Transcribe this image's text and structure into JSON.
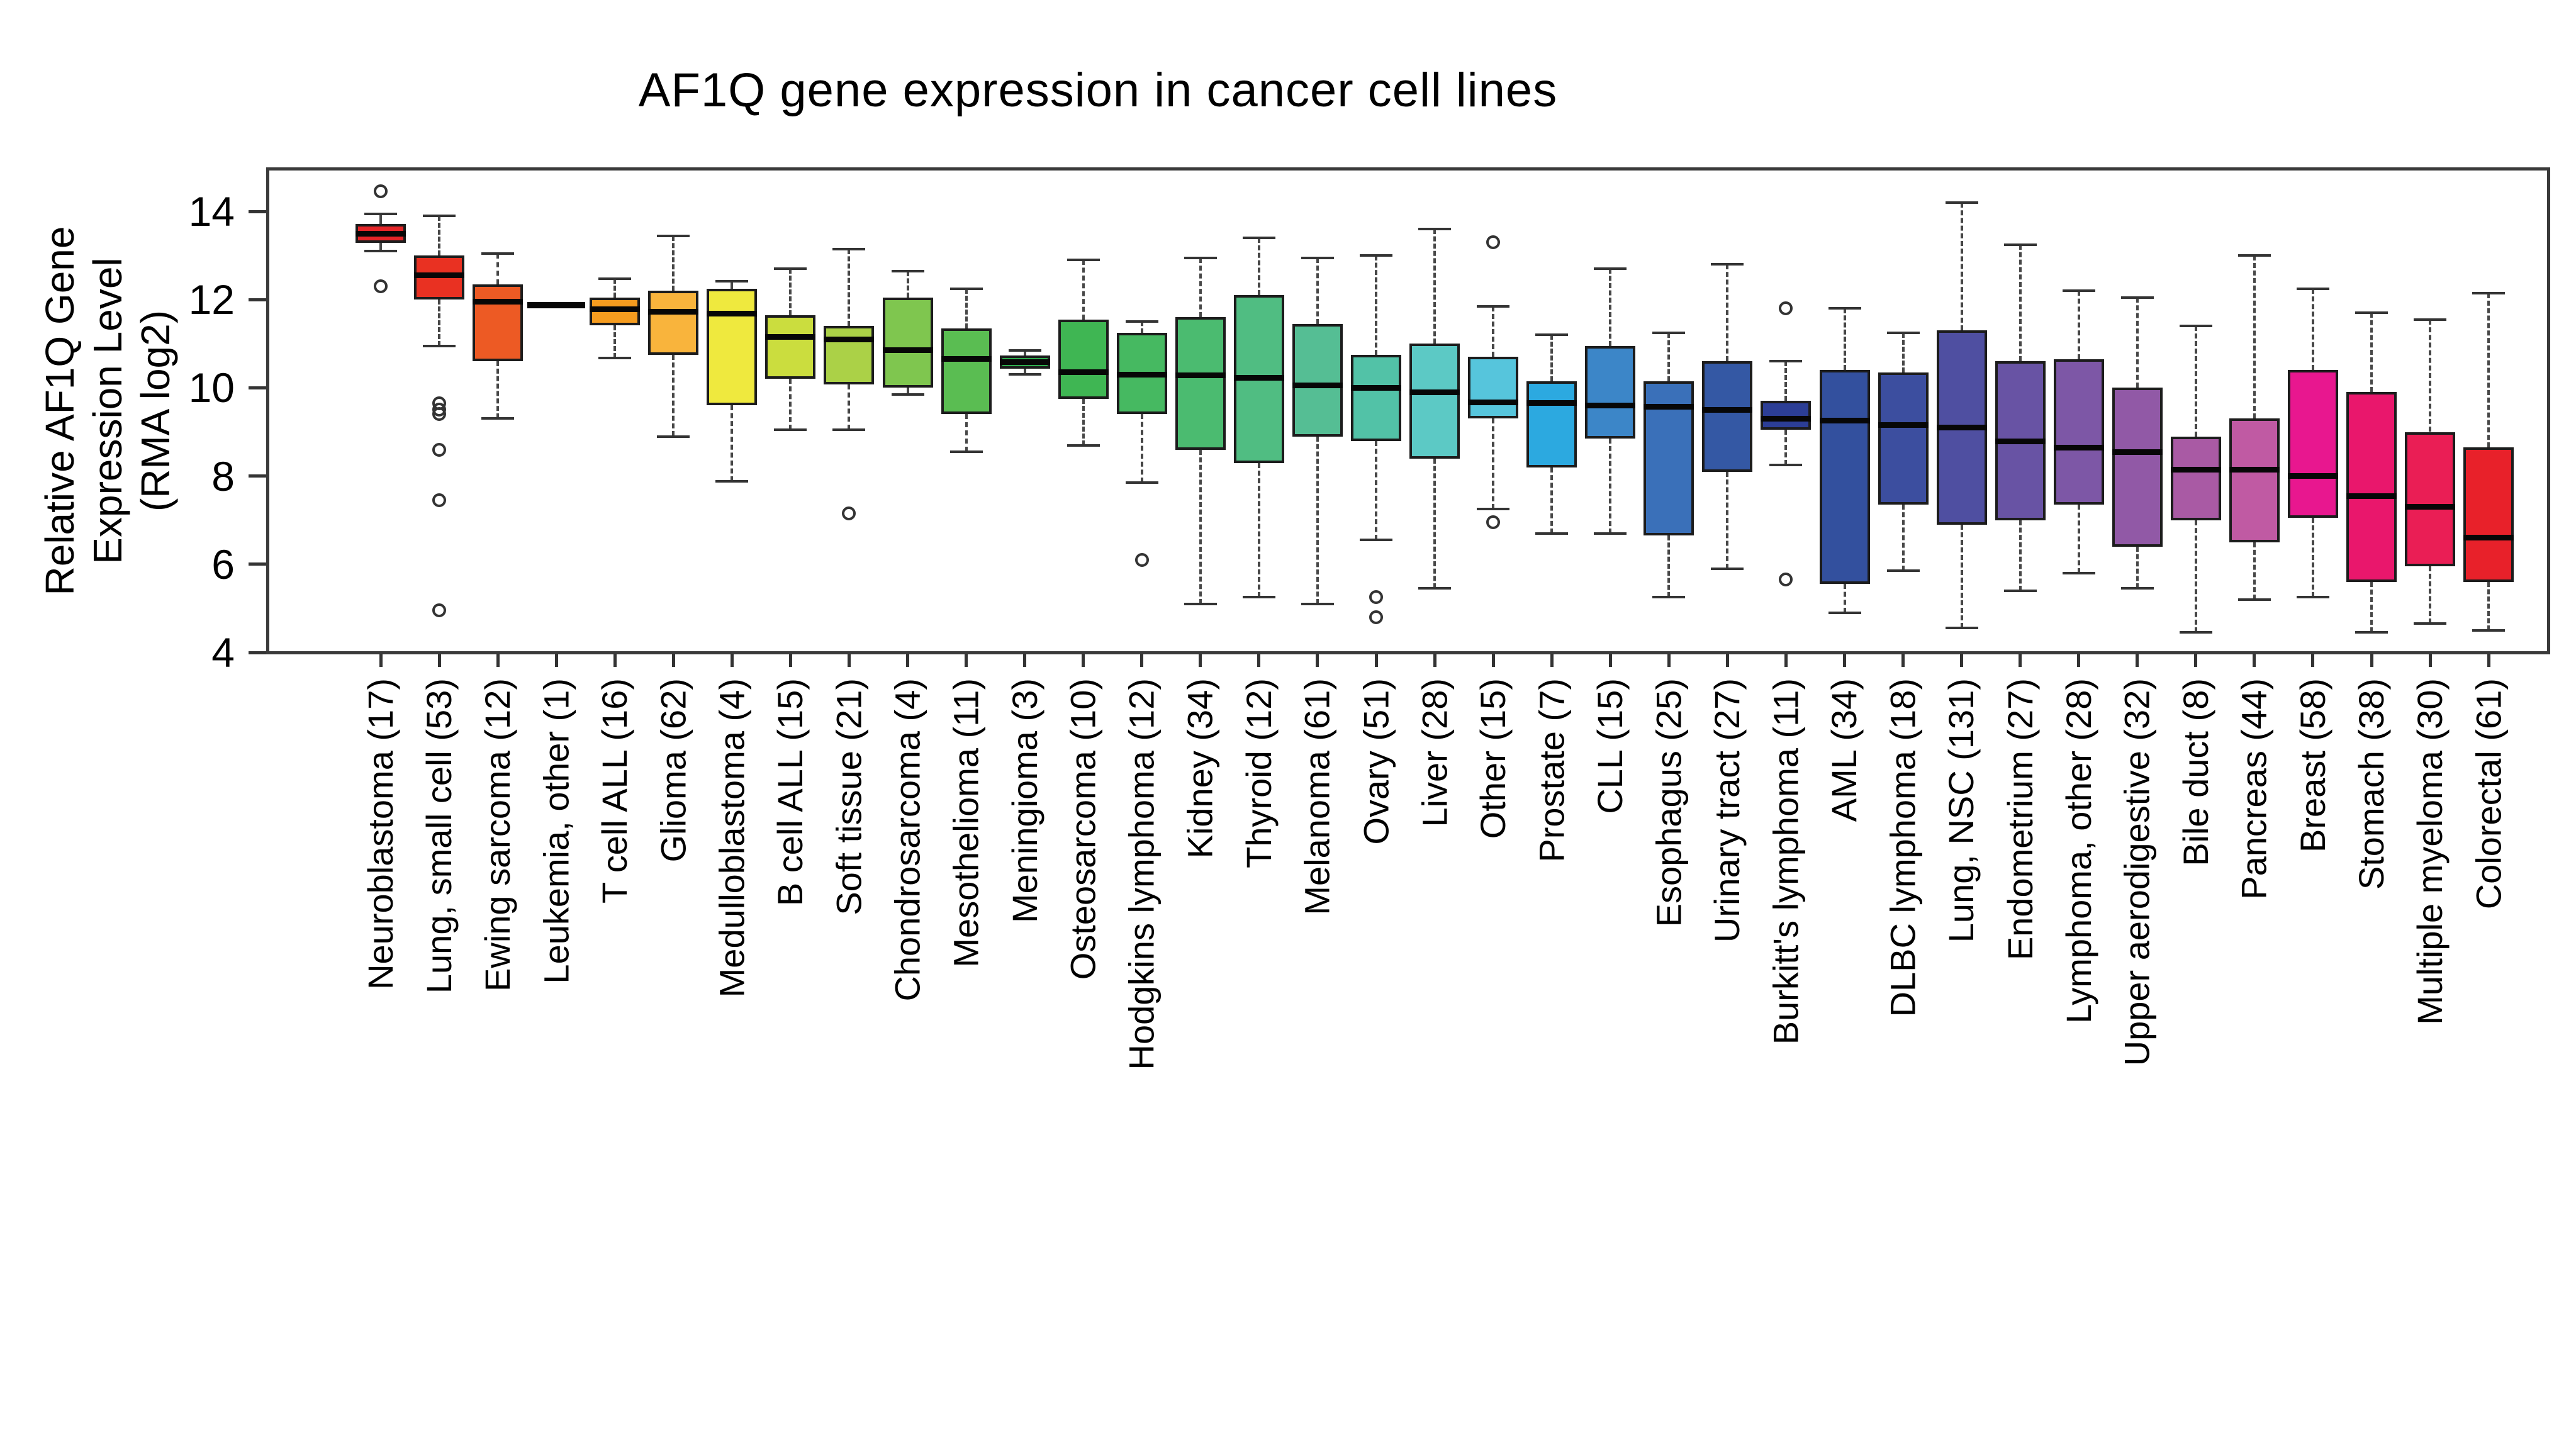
{
  "title": "AF1Q gene expression in cancer cell lines",
  "y_axis": {
    "title_lines": [
      "Relative AF1Q Gene",
      "Expression Level",
      "(RMA log2)"
    ],
    "title_text": "Relative AF1Q Gene Expression Level (RMA log2)",
    "ticks": [
      4,
      6,
      8,
      10,
      12,
      14
    ]
  },
  "chart_data": {
    "type": "box",
    "title": "AF1Q gene expression in cancer cell lines",
    "xlabel": "",
    "ylabel": "Relative AF1Q Gene Expression Level (RMA log2)",
    "ylim": [
      3.85,
      14.9
    ],
    "yticks": [
      4,
      6,
      8,
      10,
      12,
      14
    ],
    "grid": false,
    "legend": "none",
    "categories": [
      "Neuroblastoma (17)",
      "Lung, small cell (53)",
      "Ewing sarcoma (12)",
      "Leukemia, other (1)",
      "T cell ALL (16)",
      "Glioma (62)",
      "Medulloblastoma (4)",
      "B cell ALL (15)",
      "Soft tissue (21)",
      "Chondrosarcoma (4)",
      "Mesothelioma (11)",
      "Meningioma (3)",
      "Osteosarcoma (10)",
      "Hodgkins lymphoma (12)",
      "Kidney (34)",
      "Thyroid (12)",
      "Melanoma (61)",
      "Ovary (51)",
      "Liver (28)",
      "Other (15)",
      "Prostate (7)",
      "CLL (15)",
      "Esophagus (25)",
      "Urinary tract (27)",
      "Burkitt's lymphoma (11)",
      "AML (34)",
      "DLBC lymphoma (18)",
      "Lung, NSC (131)",
      "Endometrium (27)",
      "Lymphoma, other (28)",
      "Upper aerodigestive (32)",
      "Bile duct (8)",
      "Pancreas (44)",
      "Breast (58)",
      "Stomach (38)",
      "Multiple myeloma (30)",
      "Colorectal (61)"
    ],
    "series": [
      {
        "name": "Neuroblastoma (17)",
        "color": "#E52528",
        "low": 13.1,
        "q1": 13.28,
        "median": 13.5,
        "q3": 13.72,
        "high": 13.95,
        "outliers": [
          14.45,
          12.3
        ]
      },
      {
        "name": "Lung, small cell (53)",
        "color": "#E93122",
        "low": 10.95,
        "q1": 12.0,
        "median": 12.55,
        "q3": 13.0,
        "high": 13.9,
        "outliers": [
          9.65,
          9.5,
          9.4,
          8.6,
          7.45,
          4.95
        ]
      },
      {
        "name": "Ewing sarcoma (12)",
        "color": "#ED5A24",
        "low": 9.3,
        "q1": 10.6,
        "median": 11.95,
        "q3": 12.35,
        "high": 13.05,
        "outliers": []
      },
      {
        "name": "Leukemia, other (1)",
        "color": "#F08020",
        "single": true,
        "median": 11.87,
        "outliers": []
      },
      {
        "name": "T cell ALL (16)",
        "color": "#F59C1F",
        "low": 10.68,
        "q1": 11.42,
        "median": 11.78,
        "q3": 12.05,
        "high": 12.48,
        "outliers": []
      },
      {
        "name": "Glioma (62)",
        "color": "#F9B43C",
        "low": 8.9,
        "q1": 10.75,
        "median": 11.72,
        "q3": 12.2,
        "high": 13.45,
        "outliers": []
      },
      {
        "name": "Medulloblastoma (4)",
        "color": "#EFE93E",
        "low": 7.88,
        "q1": 9.6,
        "median": 11.68,
        "q3": 12.25,
        "high": 12.42,
        "outliers": []
      },
      {
        "name": "B cell ALL (15)",
        "color": "#CBDD3E",
        "low": 9.05,
        "q1": 10.2,
        "median": 11.15,
        "q3": 11.65,
        "high": 12.7,
        "outliers": []
      },
      {
        "name": "Soft tissue (21)",
        "color": "#ABD147",
        "low": 9.05,
        "q1": 10.08,
        "median": 11.1,
        "q3": 11.4,
        "high": 13.15,
        "outliers": [
          7.15
        ]
      },
      {
        "name": "Chondrosarcoma (4)",
        "color": "#7FC64F",
        "low": 9.85,
        "q1": 10.0,
        "median": 10.85,
        "q3": 12.05,
        "high": 12.65,
        "outliers": []
      },
      {
        "name": "Mesothelioma (11)",
        "color": "#5ABD52",
        "low": 8.55,
        "q1": 9.4,
        "median": 10.65,
        "q3": 11.35,
        "high": 12.25,
        "outliers": []
      },
      {
        "name": "Meningioma (3)",
        "color": "#2FAD4E",
        "low": 10.3,
        "q1": 10.43,
        "median": 10.58,
        "q3": 10.73,
        "high": 10.85,
        "outliers": []
      },
      {
        "name": "Osteosarcoma (10)",
        "color": "#3FB653",
        "low": 8.7,
        "q1": 9.75,
        "median": 10.35,
        "q3": 11.55,
        "high": 12.9,
        "outliers": []
      },
      {
        "name": "Hodgkins lymphoma (12)",
        "color": "#46B961",
        "low": 7.85,
        "q1": 9.4,
        "median": 10.3,
        "q3": 11.25,
        "high": 11.5,
        "outliers": [
          6.1
        ]
      },
      {
        "name": "Kidney (34)",
        "color": "#4BBB70",
        "low": 5.1,
        "q1": 8.6,
        "median": 10.28,
        "q3": 11.6,
        "high": 12.95,
        "outliers": []
      },
      {
        "name": "Thyroid (12)",
        "color": "#50BD82",
        "low": 5.25,
        "q1": 8.3,
        "median": 10.22,
        "q3": 12.1,
        "high": 13.4,
        "outliers": []
      },
      {
        "name": "Melanoma (61)",
        "color": "#55BE94",
        "low": 5.1,
        "q1": 8.9,
        "median": 10.05,
        "q3": 11.45,
        "high": 12.95,
        "outliers": []
      },
      {
        "name": "Ovary (51)",
        "color": "#52C2A7",
        "low": 6.55,
        "q1": 8.8,
        "median": 10.0,
        "q3": 10.75,
        "high": 13.0,
        "outliers": [
          5.25,
          4.8
        ]
      },
      {
        "name": "Liver (28)",
        "color": "#5CC9C5",
        "low": 5.45,
        "q1": 8.4,
        "median": 9.9,
        "q3": 11.0,
        "high": 13.6,
        "outliers": []
      },
      {
        "name": "Other (15)",
        "color": "#56C5DC",
        "low": 7.25,
        "q1": 9.3,
        "median": 9.67,
        "q3": 10.7,
        "high": 11.85,
        "outliers": [
          13.3,
          6.95
        ]
      },
      {
        "name": "Prostate (7)",
        "color": "#2CA9E0",
        "low": 6.7,
        "q1": 8.2,
        "median": 9.65,
        "q3": 10.15,
        "high": 11.2,
        "outliers": []
      },
      {
        "name": "CLL (15)",
        "color": "#3C86C8",
        "low": 6.7,
        "q1": 8.85,
        "median": 9.6,
        "q3": 10.95,
        "high": 12.7,
        "outliers": []
      },
      {
        "name": "Esophagus (25)",
        "color": "#3A70B9",
        "low": 5.25,
        "q1": 6.65,
        "median": 9.57,
        "q3": 10.15,
        "high": 11.25,
        "outliers": []
      },
      {
        "name": "Urinary tract (27)",
        "color": "#3458A4",
        "low": 5.9,
        "q1": 8.1,
        "median": 9.5,
        "q3": 10.6,
        "high": 12.8,
        "outliers": []
      },
      {
        "name": "Burkitt's lymphoma (11)",
        "color": "#2C3E96",
        "low": 8.25,
        "q1": 9.05,
        "median": 9.3,
        "q3": 9.7,
        "high": 10.6,
        "outliers": [
          11.8,
          5.65
        ]
      },
      {
        "name": "AML (34)",
        "color": "#33509E",
        "low": 4.9,
        "q1": 5.55,
        "median": 9.25,
        "q3": 10.4,
        "high": 11.8,
        "outliers": []
      },
      {
        "name": "DLBC lymphoma (18)",
        "color": "#3C4E9F",
        "low": 5.85,
        "q1": 7.35,
        "median": 9.15,
        "q3": 10.35,
        "high": 11.25,
        "outliers": []
      },
      {
        "name": "Lung, NSC (131)",
        "color": "#4F4FA1",
        "low": 4.55,
        "q1": 6.9,
        "median": 9.1,
        "q3": 11.3,
        "high": 14.2,
        "outliers": []
      },
      {
        "name": "Endometrium (27)",
        "color": "#6853A4",
        "low": 5.4,
        "q1": 7.0,
        "median": 8.78,
        "q3": 10.6,
        "high": 13.25,
        "outliers": []
      },
      {
        "name": "Lymphoma, other (28)",
        "color": "#7D57A6",
        "low": 5.8,
        "q1": 7.35,
        "median": 8.65,
        "q3": 10.65,
        "high": 12.2,
        "outliers": []
      },
      {
        "name": "Upper aerodigestive (32)",
        "color": "#9159A6",
        "low": 5.45,
        "q1": 6.4,
        "median": 8.55,
        "q3": 10.0,
        "high": 12.05,
        "outliers": []
      },
      {
        "name": "Bile duct (8)",
        "color": "#A95AA4",
        "low": 4.45,
        "q1": 7.0,
        "median": 8.15,
        "q3": 8.9,
        "high": 11.4,
        "outliers": []
      },
      {
        "name": "Pancreas (44)",
        "color": "#C05AA3",
        "low": 5.2,
        "q1": 6.5,
        "median": 8.15,
        "q3": 9.3,
        "high": 13.0,
        "outliers": []
      },
      {
        "name": "Breast (58)",
        "color": "#E8178F",
        "low": 5.25,
        "q1": 7.05,
        "median": 8.0,
        "q3": 10.4,
        "high": 12.25,
        "outliers": []
      },
      {
        "name": "Stomach (38)",
        "color": "#E9176C",
        "low": 4.45,
        "q1": 5.6,
        "median": 7.55,
        "q3": 9.9,
        "high": 11.7,
        "outliers": []
      },
      {
        "name": "Multiple myeloma (30)",
        "color": "#EA1E55",
        "low": 4.65,
        "q1": 5.95,
        "median": 7.3,
        "q3": 9.0,
        "high": 11.55,
        "outliers": []
      },
      {
        "name": "Colorectal (61)",
        "color": "#E8212A",
        "low": 4.5,
        "q1": 5.6,
        "median": 6.6,
        "q3": 8.65,
        "high": 12.15,
        "outliers": []
      }
    ]
  }
}
